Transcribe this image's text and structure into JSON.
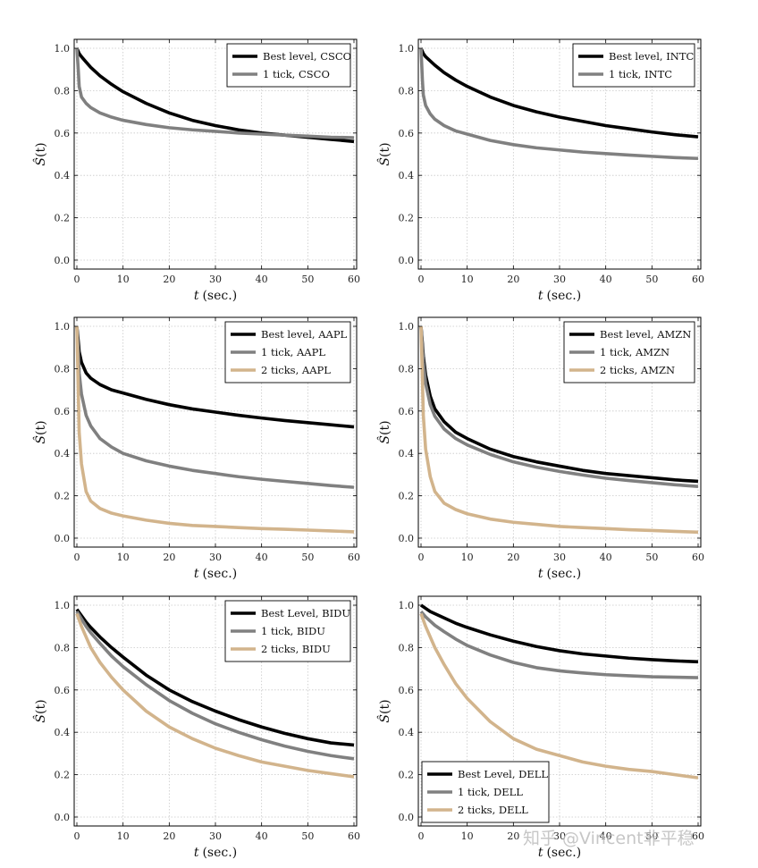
{
  "watermark": "知乎 @Vincent非平稳",
  "chart_data": [
    {
      "type": "line",
      "xlabel_var": "t",
      "xlabel_unit": "(sec.)",
      "ylabel_var": "Ŝ",
      "ylabel_arg": "(t)",
      "xlim": [
        0,
        60
      ],
      "ylim": [
        0.0,
        1.0
      ],
      "xticks": [
        "0",
        "10",
        "20",
        "30",
        "40",
        "50",
        "60"
      ],
      "yticks": [
        "0.0",
        "0.2",
        "0.4",
        "0.6",
        "0.8",
        "1.0"
      ],
      "grid": true,
      "legend_position": "top-right",
      "series": [
        {
          "name": "Best level, CSCO",
          "color": "#000000",
          "x": [
            0,
            0.5,
            1,
            2,
            3,
            5,
            7.5,
            10,
            15,
            20,
            25,
            30,
            35,
            40,
            45,
            50,
            55,
            60
          ],
          "y": [
            1.0,
            0.975,
            0.96,
            0.935,
            0.91,
            0.87,
            0.83,
            0.795,
            0.74,
            0.695,
            0.66,
            0.635,
            0.615,
            0.6,
            0.59,
            0.58,
            0.57,
            0.56
          ]
        },
        {
          "name": "1 tick, CSCO",
          "color": "#808080",
          "x": [
            0,
            0.3,
            0.5,
            1,
            2,
            3,
            5,
            7.5,
            10,
            15,
            20,
            25,
            30,
            35,
            40,
            45,
            50,
            55,
            60
          ],
          "y": [
            1.0,
            0.9,
            0.82,
            0.77,
            0.74,
            0.72,
            0.695,
            0.675,
            0.66,
            0.64,
            0.625,
            0.615,
            0.608,
            0.6,
            0.595,
            0.59,
            0.585,
            0.58,
            0.578
          ]
        }
      ]
    },
    {
      "type": "line",
      "xlabel_var": "t",
      "xlabel_unit": "(sec.)",
      "ylabel_var": "Ŝ",
      "ylabel_arg": "(t)",
      "xlim": [
        0,
        60
      ],
      "ylim": [
        0.0,
        1.0
      ],
      "xticks": [
        "0",
        "10",
        "20",
        "30",
        "40",
        "50",
        "60"
      ],
      "yticks": [
        "0.0",
        "0.2",
        "0.4",
        "0.6",
        "0.8",
        "1.0"
      ],
      "grid": true,
      "legend_position": "top-right",
      "series": [
        {
          "name": "Best level, INTC",
          "color": "#000000",
          "x": [
            0,
            0.5,
            1,
            2,
            3,
            5,
            7.5,
            10,
            15,
            20,
            25,
            30,
            35,
            40,
            45,
            50,
            55,
            60
          ],
          "y": [
            1.0,
            0.975,
            0.96,
            0.94,
            0.92,
            0.885,
            0.85,
            0.82,
            0.77,
            0.73,
            0.7,
            0.675,
            0.655,
            0.635,
            0.62,
            0.605,
            0.592,
            0.582
          ]
        },
        {
          "name": "1 tick, INTC",
          "color": "#808080",
          "x": [
            0,
            0.3,
            0.5,
            1,
            2,
            3,
            5,
            7.5,
            10,
            15,
            20,
            25,
            30,
            35,
            40,
            45,
            50,
            55,
            60
          ],
          "y": [
            1.0,
            0.85,
            0.78,
            0.73,
            0.69,
            0.665,
            0.635,
            0.61,
            0.595,
            0.565,
            0.545,
            0.53,
            0.52,
            0.51,
            0.503,
            0.496,
            0.49,
            0.484,
            0.48
          ]
        }
      ]
    },
    {
      "type": "line",
      "xlabel_var": "t",
      "xlabel_unit": "(sec.)",
      "ylabel_var": "Ŝ",
      "ylabel_arg": "(t)",
      "xlim": [
        0,
        60
      ],
      "ylim": [
        0.0,
        1.0
      ],
      "xticks": [
        "0",
        "10",
        "20",
        "30",
        "40",
        "50",
        "60"
      ],
      "yticks": [
        "0.0",
        "0.2",
        "0.4",
        "0.6",
        "0.8",
        "1.0"
      ],
      "grid": true,
      "legend_position": "top-right",
      "series": [
        {
          "name": "Best level, AAPL",
          "color": "#000000",
          "x": [
            0,
            0.3,
            0.5,
            1,
            2,
            3,
            5,
            7.5,
            10,
            15,
            20,
            25,
            30,
            35,
            40,
            45,
            50,
            55,
            60
          ],
          "y": [
            1.0,
            0.93,
            0.88,
            0.83,
            0.78,
            0.755,
            0.725,
            0.7,
            0.685,
            0.655,
            0.63,
            0.61,
            0.595,
            0.58,
            0.567,
            0.555,
            0.545,
            0.535,
            0.525
          ]
        },
        {
          "name": "1 tick, AAPL",
          "color": "#808080",
          "x": [
            0,
            0.3,
            0.5,
            1,
            2,
            3,
            5,
            7.5,
            10,
            15,
            20,
            25,
            30,
            35,
            40,
            45,
            50,
            55,
            60
          ],
          "y": [
            1.0,
            0.88,
            0.78,
            0.68,
            0.58,
            0.53,
            0.47,
            0.43,
            0.4,
            0.365,
            0.34,
            0.32,
            0.305,
            0.29,
            0.278,
            0.268,
            0.258,
            0.248,
            0.24
          ]
        },
        {
          "name": "2 ticks, AAPL",
          "color": "#d2b48c",
          "x": [
            0,
            0.3,
            0.5,
            1,
            2,
            3,
            5,
            7.5,
            10,
            15,
            20,
            25,
            30,
            35,
            40,
            45,
            50,
            55,
            60
          ],
          "y": [
            1.0,
            0.7,
            0.5,
            0.35,
            0.22,
            0.175,
            0.14,
            0.118,
            0.105,
            0.085,
            0.07,
            0.06,
            0.055,
            0.05,
            0.045,
            0.042,
            0.038,
            0.034,
            0.03
          ]
        }
      ]
    },
    {
      "type": "line",
      "xlabel_var": "t",
      "xlabel_unit": "(sec.)",
      "ylabel_var": "Ŝ",
      "ylabel_arg": "(t)",
      "xlim": [
        0,
        60
      ],
      "ylim": [
        0.0,
        1.0
      ],
      "xticks": [
        "0",
        "10",
        "20",
        "30",
        "40",
        "50",
        "60"
      ],
      "yticks": [
        "0.0",
        "0.2",
        "0.4",
        "0.6",
        "0.8",
        "1.0"
      ],
      "grid": true,
      "legend_position": "top-right",
      "series": [
        {
          "name": "Best level, AMZN",
          "color": "#000000",
          "x": [
            0,
            0.3,
            0.5,
            1,
            2,
            3,
            5,
            7.5,
            10,
            15,
            20,
            25,
            30,
            35,
            40,
            45,
            50,
            55,
            60
          ],
          "y": [
            1.0,
            0.92,
            0.86,
            0.77,
            0.67,
            0.61,
            0.55,
            0.5,
            0.47,
            0.42,
            0.385,
            0.36,
            0.34,
            0.32,
            0.305,
            0.295,
            0.285,
            0.275,
            0.268
          ]
        },
        {
          "name": "1 tick, AMZN",
          "color": "#808080",
          "x": [
            0,
            0.3,
            0.5,
            1,
            2,
            3,
            5,
            7.5,
            10,
            15,
            20,
            25,
            30,
            35,
            40,
            45,
            50,
            55,
            60
          ],
          "y": [
            1.0,
            0.9,
            0.83,
            0.73,
            0.63,
            0.575,
            0.515,
            0.47,
            0.44,
            0.395,
            0.36,
            0.335,
            0.315,
            0.298,
            0.283,
            0.272,
            0.262,
            0.252,
            0.244
          ]
        },
        {
          "name": "2 ticks, AMZN",
          "color": "#d2b48c",
          "x": [
            0,
            0.3,
            0.5,
            1,
            2,
            3,
            5,
            7.5,
            10,
            15,
            20,
            25,
            30,
            35,
            40,
            45,
            50,
            55,
            60
          ],
          "y": [
            1.0,
            0.75,
            0.58,
            0.42,
            0.29,
            0.22,
            0.165,
            0.135,
            0.115,
            0.09,
            0.075,
            0.065,
            0.055,
            0.05,
            0.045,
            0.04,
            0.036,
            0.032,
            0.028
          ]
        }
      ]
    },
    {
      "type": "line",
      "xlabel_var": "t",
      "xlabel_unit": "(sec.)",
      "ylabel_var": "Ŝ",
      "ylabel_arg": "(t)",
      "xlim": [
        0,
        60
      ],
      "ylim": [
        0.0,
        1.0
      ],
      "xticks": [
        "0",
        "10",
        "20",
        "30",
        "40",
        "50",
        "60"
      ],
      "yticks": [
        "0.0",
        "0.2",
        "0.4",
        "0.6",
        "0.8",
        "1.0"
      ],
      "grid": true,
      "legend_position": "top-right",
      "series": [
        {
          "name": "Best Level, BIDU",
          "color": "#000000",
          "x": [
            0,
            1,
            2,
            3,
            5,
            7.5,
            10,
            15,
            20,
            25,
            30,
            35,
            40,
            45,
            50,
            55,
            60
          ],
          "y": [
            0.98,
            0.95,
            0.92,
            0.895,
            0.85,
            0.8,
            0.755,
            0.67,
            0.6,
            0.545,
            0.5,
            0.46,
            0.425,
            0.395,
            0.37,
            0.35,
            0.34
          ]
        },
        {
          "name": "1 tick, BIDU",
          "color": "#808080",
          "x": [
            0,
            1,
            2,
            3,
            5,
            7.5,
            10,
            15,
            20,
            25,
            30,
            35,
            40,
            45,
            50,
            55,
            60
          ],
          "y": [
            0.97,
            0.935,
            0.9,
            0.87,
            0.82,
            0.76,
            0.71,
            0.625,
            0.55,
            0.49,
            0.44,
            0.4,
            0.365,
            0.335,
            0.31,
            0.29,
            0.275
          ]
        },
        {
          "name": "2 ticks, BIDU",
          "color": "#d2b48c",
          "x": [
            0,
            1,
            2,
            3,
            5,
            7.5,
            10,
            15,
            20,
            25,
            30,
            35,
            40,
            45,
            50,
            55,
            60
          ],
          "y": [
            0.96,
            0.9,
            0.85,
            0.8,
            0.73,
            0.66,
            0.6,
            0.5,
            0.425,
            0.37,
            0.325,
            0.29,
            0.26,
            0.24,
            0.22,
            0.205,
            0.19
          ]
        }
      ]
    },
    {
      "type": "line",
      "xlabel_var": "t",
      "xlabel_unit": "(sec.)",
      "ylabel_var": "Ŝ",
      "ylabel_arg": "(t)",
      "xlim": [
        0,
        60
      ],
      "ylim": [
        0.0,
        1.0
      ],
      "xticks": [
        "0",
        "10",
        "20",
        "30",
        "40",
        "50",
        "60"
      ],
      "yticks": [
        "0.0",
        "0.2",
        "0.4",
        "0.6",
        "0.8",
        "1.0"
      ],
      "grid": true,
      "legend_position": "bottom-left",
      "series": [
        {
          "name": "Best Level, DELL",
          "color": "#000000",
          "x": [
            0,
            1,
            2,
            3,
            5,
            7.5,
            10,
            15,
            20,
            25,
            30,
            35,
            40,
            45,
            50,
            55,
            60
          ],
          "y": [
            1.0,
            0.985,
            0.97,
            0.96,
            0.94,
            0.915,
            0.895,
            0.86,
            0.83,
            0.805,
            0.785,
            0.77,
            0.76,
            0.75,
            0.743,
            0.737,
            0.733
          ]
        },
        {
          "name": "1 tick, DELL",
          "color": "#808080",
          "x": [
            0,
            1,
            2,
            3,
            5,
            7.5,
            10,
            15,
            20,
            25,
            30,
            35,
            40,
            45,
            50,
            55,
            60
          ],
          "y": [
            0.97,
            0.945,
            0.925,
            0.905,
            0.875,
            0.84,
            0.81,
            0.765,
            0.73,
            0.705,
            0.69,
            0.68,
            0.672,
            0.667,
            0.662,
            0.66,
            0.658
          ]
        },
        {
          "name": "2 ticks, DELL",
          "color": "#d2b48c",
          "x": [
            0,
            1,
            2,
            3,
            5,
            7.5,
            10,
            15,
            20,
            25,
            30,
            35,
            40,
            45,
            50,
            55,
            60
          ],
          "y": [
            0.96,
            0.9,
            0.85,
            0.8,
            0.72,
            0.63,
            0.56,
            0.45,
            0.37,
            0.32,
            0.29,
            0.26,
            0.24,
            0.225,
            0.215,
            0.2,
            0.185
          ]
        }
      ]
    }
  ]
}
